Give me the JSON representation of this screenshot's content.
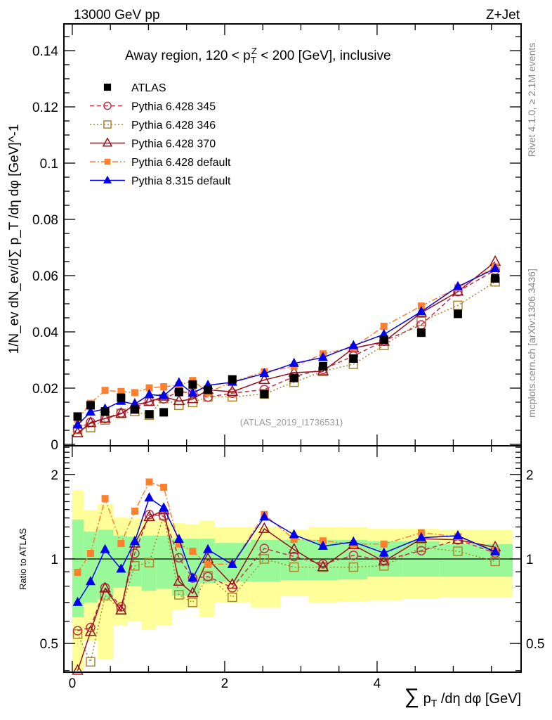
{
  "header": {
    "energy": "13000 GeV pp",
    "process": "Z+Jet",
    "rivet": "Rivet 4.1.0, ≥ 2.1M events",
    "mcplots": "mcplots.cern.ch [arXiv:1306.3436]",
    "analysis": "(ATLAS_2019_I1736531)"
  },
  "colors": {
    "ATLAS": "#000000",
    "p345": "#c0304a",
    "p346": "#a8862e",
    "p370": "#9a0e1e",
    "p6def": "#ff7f2a",
    "p8def": "#0000ee",
    "band_inner": "#99f999",
    "band_outer": "#ffff99"
  },
  "chart_data": [
    {
      "type": "line",
      "panel": "main",
      "title": "Away region, 120 < p_T^Z < 200 [GeV], inclusive",
      "title_parts": [
        {
          "t": "Away region, 120 < p"
        },
        {
          "t": "T",
          "s": "sub"
        },
        {
          "t": "Z",
          "s": "supk"
        },
        {
          "t": " < 200 [GeV], inclusive"
        }
      ],
      "xlabel": "∑ p_T /dη dφ [GeV]",
      "xlabel_parts": [
        {
          "t": "∑",
          "s": "big"
        },
        {
          "t": " p"
        },
        {
          "t": "T",
          "s": "sub"
        },
        {
          "t": " /dη dφ [GeV]"
        }
      ],
      "ylabel": "1/N_ev dN_ev/d∑ p_T /dη dφ [GeV]^-1",
      "ylabel_parts": [
        {
          "t": "1/N"
        },
        {
          "t": "ev",
          "s": "sub"
        },
        {
          "t": " dN"
        },
        {
          "t": "ev",
          "s": "sub"
        },
        {
          "t": "/d"
        },
        {
          "t": "∑",
          "s": "big"
        },
        {
          "t": " p"
        },
        {
          "t": "T",
          "s": "sub"
        },
        {
          "t": " /dη dφ  [GeV]"
        },
        {
          "t": "-1",
          "s": "sup"
        }
      ],
      "xlim": [
        -0.11,
        5.89
      ],
      "ylim": [
        0,
        0.1495
      ],
      "yticks": [
        0,
        0.02,
        0.04,
        0.06,
        0.08,
        0.1,
        0.12,
        0.14
      ],
      "ytick_labels": [
        "0",
        "0.02",
        "0.04",
        "0.06",
        "0.08",
        "0.1",
        "0.12",
        "0.14"
      ],
      "x": [
        0.07,
        0.24,
        0.43,
        0.64,
        0.82,
        1.01,
        1.2,
        1.4,
        1.58,
        1.78,
        2.1,
        2.52,
        2.91,
        3.29,
        3.69,
        4.09,
        4.58,
        5.06,
        5.55
      ],
      "legend_position": "top-left",
      "series": [
        {
          "key": "ATLAS",
          "name": "ATLAS",
          "marker": "square-filled",
          "line": "none",
          "values": [
            0.0099,
            0.0139,
            0.0117,
            0.0166,
            0.0124,
            0.0107,
            0.0114,
            0.0186,
            0.0213,
            0.0194,
            0.0231,
            0.0179,
            0.0236,
            0.0278,
            0.0305,
            0.0372,
            0.0397,
            0.0464,
            0.059
          ]
        },
        {
          "key": "p345",
          "name": "Pythia 6.428 345",
          "marker": "circle-open",
          "line": "dashed",
          "values": [
            0.0055,
            0.0079,
            0.0092,
            0.0112,
            0.013,
            0.0154,
            0.0162,
            0.0188,
            0.0182,
            0.0168,
            0.0182,
            0.0195,
            0.0241,
            0.0267,
            0.0314,
            0.0368,
            0.0425,
            0.0543,
            0.062
          ]
        },
        {
          "key": "p346",
          "name": "Pythia 6.428 346",
          "marker": "square-open",
          "line": "dotted",
          "values": [
            0.0053,
            0.006,
            0.0087,
            0.011,
            0.0117,
            0.0104,
            0.0163,
            0.0139,
            0.0149,
            0.0169,
            0.0169,
            0.0179,
            0.0221,
            0.026,
            0.0285,
            0.0352,
            0.0437,
            0.0494,
            0.0578
          ]
        },
        {
          "key": "p370",
          "name": "Pythia 6.428 370",
          "marker": "triangle-open",
          "line": "solid",
          "values": [
            0.004,
            0.0076,
            0.0092,
            0.0109,
            0.0141,
            0.0151,
            0.017,
            0.0154,
            0.0161,
            0.0194,
            0.0187,
            0.0229,
            0.0255,
            0.026,
            0.0342,
            0.0365,
            0.0468,
            0.0543,
            0.0649
          ]
        },
        {
          "key": "p6def",
          "name": "Pythia 6.428 default",
          "marker": "square-filled-small",
          "line": "dashdot",
          "values": [
            0.0089,
            0.0146,
            0.0192,
            0.0188,
            0.0184,
            0.0201,
            0.0205,
            0.021,
            0.0227,
            0.0185,
            0.0222,
            0.0258,
            0.0277,
            0.0322,
            0.0345,
            0.042,
            0.0492,
            0.0557,
            0.0631
          ]
        },
        {
          "key": "p8def",
          "name": "Pythia 8.315 default",
          "marker": "triangle-filled",
          "line": "solid",
          "values": [
            0.0069,
            0.0115,
            0.0126,
            0.0153,
            0.0143,
            0.0177,
            0.0173,
            0.0219,
            0.0182,
            0.021,
            0.0221,
            0.0252,
            0.0288,
            0.0309,
            0.0351,
            0.0391,
            0.0472,
            0.0561,
            0.0625
          ]
        }
      ]
    },
    {
      "type": "line",
      "panel": "ratio",
      "ylabel": "Ratio to ATLAS",
      "yscale": "log",
      "ylim": [
        0.395,
        2.53
      ],
      "yticks": [
        0.5,
        1,
        2
      ],
      "ytick_labels": [
        "0.5",
        "1",
        "2"
      ],
      "xticks": [
        0,
        2,
        4
      ],
      "xtick_labels": [
        "0",
        "2",
        "4"
      ],
      "bin_edges": [
        0,
        0.15,
        0.33,
        0.54,
        0.72,
        0.91,
        1.1,
        1.31,
        1.49,
        1.67,
        1.87,
        2.34,
        2.73,
        3.1,
        3.49,
        3.87,
        4.34,
        4.82,
        5.3,
        5.78
      ],
      "band_inner": [
        [
          0.62,
          1.38
        ],
        [
          0.7,
          1.25
        ],
        [
          0.72,
          1.27
        ],
        [
          0.79,
          1.21
        ],
        [
          0.8,
          1.2
        ],
        [
          0.77,
          1.21
        ],
        [
          0.785,
          1.21
        ],
        [
          0.74,
          1.18
        ],
        [
          0.74,
          1.18
        ],
        [
          0.82,
          1.18
        ],
        [
          0.83,
          1.14
        ],
        [
          0.83,
          1.17
        ],
        [
          0.84,
          1.17
        ],
        [
          0.84,
          1.17
        ],
        [
          0.845,
          1.17
        ],
        [
          0.865,
          1.155
        ],
        [
          0.865,
          1.155
        ],
        [
          0.865,
          1.13
        ],
        [
          0.865,
          1.13
        ]
      ],
      "band_outer": [
        [
          0.4,
          1.76
        ],
        [
          0.51,
          1.49
        ],
        [
          0.44,
          1.57
        ],
        [
          0.58,
          1.41
        ],
        [
          0.6,
          1.4
        ],
        [
          0.56,
          1.4
        ],
        [
          0.58,
          1.37
        ],
        [
          0.66,
          1.34
        ],
        [
          0.67,
          1.33
        ],
        [
          0.62,
          1.37
        ],
        [
          0.7,
          1.3
        ],
        [
          0.67,
          1.3
        ],
        [
          0.74,
          1.27
        ],
        [
          0.7,
          1.3
        ],
        [
          0.705,
          1.3
        ],
        [
          0.71,
          1.28
        ],
        [
          0.72,
          1.28
        ],
        [
          0.73,
          1.27
        ],
        [
          0.73,
          1.27
        ]
      ],
      "series": [
        {
          "key": "p345",
          "values": [
            0.555,
            0.57,
            0.79,
            0.675,
            1.047,
            1.44,
            1.42,
            1.01,
            0.855,
            0.865,
            0.79,
            1.09,
            1.02,
            0.96,
            1.03,
            0.99,
            1.07,
            1.17,
            1.05
          ]
        },
        {
          "key": "p346",
          "values": [
            0.54,
            0.43,
            0.74,
            0.66,
            0.945,
            0.97,
            1.43,
            0.745,
            0.7,
            0.87,
            0.73,
            1.0,
            0.935,
            0.935,
            0.935,
            0.945,
            1.1,
            1.065,
            0.98
          ]
        },
        {
          "key": "p370",
          "values": [
            0.4,
            0.55,
            0.785,
            0.655,
            1.135,
            1.41,
            1.49,
            0.83,
            0.755,
            1.0,
            0.81,
            1.28,
            1.08,
            0.935,
            1.12,
            0.98,
            1.18,
            1.17,
            1.1
          ]
        },
        {
          "key": "p6def",
          "values": [
            0.896,
            1.047,
            1.64,
            1.135,
            1.48,
            1.88,
            1.8,
            1.13,
            1.065,
            0.955,
            0.96,
            1.44,
            1.175,
            1.16,
            1.13,
            1.13,
            1.24,
            1.2,
            1.07
          ]
        },
        {
          "key": "p8def",
          "values": [
            0.7,
            0.83,
            1.08,
            0.92,
            1.155,
            1.65,
            1.52,
            1.175,
            0.855,
            1.08,
            0.955,
            1.41,
            1.22,
            1.11,
            1.15,
            1.05,
            1.19,
            1.21,
            1.06
          ]
        }
      ]
    }
  ]
}
